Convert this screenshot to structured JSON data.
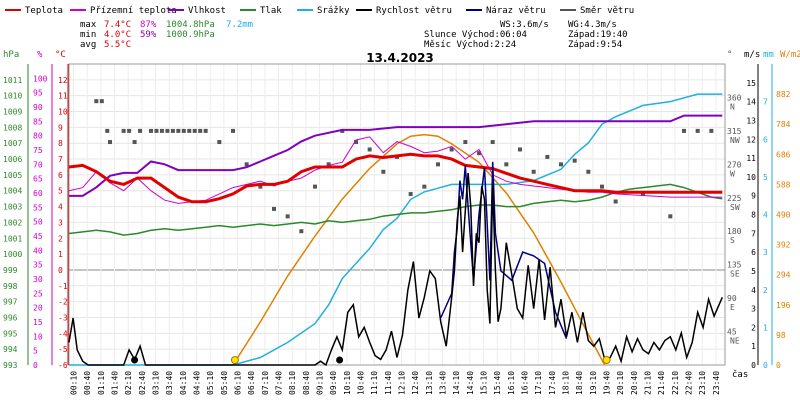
{
  "chart_data": {
    "type": "line",
    "title": "13.4.2023",
    "legend": [
      {
        "name": "Teplota",
        "color": "#e00000"
      },
      {
        "name": "Přízemní teplota",
        "color": "#d000d0"
      },
      {
        "name": "Vlhkost",
        "color": "#8000c0"
      },
      {
        "name": "Tlak",
        "color": "#2a8a2a"
      },
      {
        "name": "Srážky",
        "color": "#20b0e0"
      },
      {
        "name": "Rychlost větru",
        "color": "#000000"
      },
      {
        "name": "Náraz větru",
        "color": "#000080"
      },
      {
        "name": "Směr větru",
        "color": "#555555"
      }
    ],
    "stats": {
      "max_label": "max",
      "max_temp": "7.4°C",
      "max_hum": "87%",
      "max_press": "1004.8hPa",
      "rain": "7.2mm",
      "min_label": "min",
      "min_temp": "4.0°C",
      "min_hum": "59%",
      "min_press": "1000.9hPa",
      "avg_label": "avg",
      "avg_temp": "5.5°C"
    },
    "wind_info": {
      "ws": "WS:3.6m/s",
      "wg": "WG:4.3m/s",
      "sun": "Slunce Východ:06:04",
      "sun_set": "Západ:19:40",
      "moon": "Měsíc  Východ:2:24",
      "moon_set": "Západ:9:54"
    },
    "axes": {
      "hpa": {
        "label": "hPa",
        "min": 993,
        "max": 1012,
        "ticks": [
          "993",
          "994",
          "995",
          "996",
          "997",
          "998",
          "999",
          "1000",
          "1001",
          "1002",
          "1003",
          "1004",
          "1005",
          "1006",
          "1007",
          "1008",
          "1009",
          "1010",
          "1011"
        ]
      },
      "pct": {
        "label": "%",
        "ticks": [
          "0",
          "5",
          "10",
          "15",
          "20",
          "25",
          "30",
          "35",
          "40",
          "45",
          "50",
          "55",
          "60",
          "65",
          "70",
          "75",
          "80",
          "85",
          "90",
          "95",
          "100"
        ]
      },
      "temp": {
        "label": "°C",
        "min": -6,
        "max": 13,
        "ticks": [
          "-6",
          "-5",
          "-4",
          "-3",
          "-2",
          "-1",
          "0",
          "1",
          "2",
          "3",
          "4",
          "5",
          "6",
          "7",
          "8",
          "9",
          "10",
          "11",
          "12"
        ]
      },
      "dir": {
        "label": "°",
        "ticks": [
          {
            "deg": "360",
            "dir": "N"
          },
          {
            "deg": "315",
            "dir": "NW"
          },
          {
            "deg": "270",
            "dir": "W"
          },
          {
            "deg": "225",
            "dir": "SW"
          },
          {
            "deg": "180",
            "dir": "S"
          },
          {
            "deg": "135",
            "dir": "SE"
          },
          {
            "deg": "90",
            "dir": "E"
          },
          {
            "deg": "45",
            "dir": "NE"
          }
        ]
      },
      "ms": {
        "label": "m/s",
        "min": 0,
        "max": 16,
        "ticks": [
          "0",
          "1",
          "2",
          "3",
          "4",
          "5",
          "6",
          "7",
          "8",
          "9",
          "10",
          "11",
          "12",
          "13",
          "14",
          "15"
        ]
      },
      "mm": {
        "label": "mm",
        "min": 0,
        "max": 8,
        "ticks": [
          "0",
          "1",
          "2",
          "3",
          "4",
          "5",
          "6",
          "7"
        ]
      },
      "rad": {
        "label": "W/m2",
        "min": 0,
        "max": 980,
        "ticks": [
          "0",
          "98",
          "196",
          "294",
          "392",
          "490",
          "588",
          "686",
          "784",
          "882"
        ]
      },
      "xlabel": "čas",
      "x_ticks": [
        "00:10",
        "00:40",
        "01:10",
        "01:40",
        "02:10",
        "02:40",
        "03:10",
        "03:40",
        "04:10",
        "04:40",
        "05:10",
        "05:40",
        "06:10",
        "06:40",
        "07:10",
        "07:40",
        "08:10",
        "08:40",
        "09:10",
        "09:40",
        "10:10",
        "10:40",
        "11:10",
        "11:40",
        "12:10",
        "12:40",
        "13:10",
        "13:40",
        "14:10",
        "14:40",
        "15:10",
        "15:40",
        "16:10",
        "16:40",
        "17:10",
        "17:40",
        "18:10",
        "18:40",
        "19:10",
        "19:40",
        "20:10",
        "20:40",
        "21:10",
        "21:40",
        "22:10",
        "22:40",
        "23:10",
        "23:40"
      ]
    },
    "series": {
      "temperature": {
        "x": [
          0,
          0.5,
          1,
          1.5,
          2,
          2.5,
          3,
          3.5,
          4,
          4.5,
          5,
          5.5,
          6,
          6.5,
          7,
          7.5,
          8,
          8.5,
          9,
          9.5,
          10,
          10.5,
          11,
          11.5,
          12,
          12.5,
          13,
          13.5,
          14,
          14.5,
          15,
          15.5,
          16,
          16.5,
          17,
          17.5,
          18,
          18.5,
          19,
          19.5,
          20,
          21,
          22,
          23,
          23.9
        ],
        "y": [
          6.5,
          6.6,
          6.2,
          5.6,
          5.4,
          5.8,
          5.8,
          5.2,
          4.6,
          4.3,
          4.3,
          4.5,
          4.8,
          5.3,
          5.4,
          5.4,
          5.6,
          6.2,
          6.5,
          6.5,
          6.5,
          7.0,
          7.2,
          7.1,
          7.2,
          7.3,
          7.2,
          7.2,
          7.0,
          6.6,
          6.5,
          6.4,
          6.1,
          5.8,
          5.6,
          5.4,
          5.2,
          5.0,
          5.0,
          5.0,
          4.9,
          4.9,
          4.9,
          4.9,
          4.9
        ]
      },
      "ground_temperature": {
        "x": [
          0,
          0.5,
          1,
          1.5,
          2,
          2.5,
          3,
          3.5,
          4,
          4.5,
          5,
          5.5,
          6,
          6.5,
          7,
          7.5,
          8,
          8.5,
          9,
          9.5,
          10,
          10.5,
          11,
          11.5,
          12,
          12.5,
          13,
          13.5,
          14,
          14.5,
          15,
          15.5,
          16,
          16.5,
          17,
          17.5,
          18,
          18.5,
          19,
          19.5,
          20,
          21,
          22,
          23,
          23.9
        ],
        "y": [
          5.0,
          5.2,
          6.2,
          5.5,
          5.0,
          5.8,
          5.0,
          4.4,
          4.2,
          4.3,
          4.4,
          4.8,
          5.2,
          5.4,
          5.6,
          5.3,
          5.6,
          5.8,
          6.3,
          6.6,
          6.8,
          8.2,
          8.4,
          7.4,
          8.1,
          7.8,
          7.4,
          7.5,
          7.8,
          7.0,
          7.6,
          6.0,
          5.6,
          5.4,
          5.3,
          5.2,
          5.1,
          5.0,
          4.9,
          4.9,
          4.8,
          4.7,
          4.6,
          4.6,
          4.6
        ]
      },
      "humidity": {
        "x": [
          0,
          0.5,
          1,
          1.5,
          2,
          2.5,
          3,
          3.5,
          4,
          4.5,
          5,
          5.5,
          6,
          6.5,
          7,
          7.5,
          8,
          8.5,
          9,
          10,
          11,
          12,
          13,
          14,
          15,
          16,
          17,
          18,
          19,
          20,
          21,
          22,
          22.5,
          23,
          23.9
        ],
        "y": [
          59,
          59,
          62,
          66,
          67,
          67,
          71,
          70,
          68,
          68,
          68,
          68,
          68,
          69,
          71,
          73,
          75,
          78,
          80,
          82,
          82,
          83,
          83,
          83,
          83,
          84,
          85,
          85,
          85,
          85,
          85,
          85,
          87,
          87,
          87
        ]
      },
      "pressure": {
        "x": [
          0,
          0.5,
          1,
          1.5,
          2,
          2.5,
          3,
          3.5,
          4,
          4.5,
          5,
          5.5,
          6,
          6.5,
          7,
          7.5,
          8,
          8.5,
          9,
          9.5,
          10,
          10.5,
          11,
          11.5,
          12,
          12.5,
          13,
          13.5,
          14,
          14.5,
          15,
          15.5,
          16,
          16.5,
          17,
          17.5,
          18,
          18.5,
          19,
          19.5,
          20,
          20.5,
          21,
          21.5,
          22,
          22.5,
          23,
          23.5,
          23.9
        ],
        "y": [
          1001.3,
          1001.4,
          1001.5,
          1001.4,
          1001.2,
          1001.3,
          1001.5,
          1001.6,
          1001.5,
          1001.6,
          1001.7,
          1001.8,
          1001.7,
          1001.8,
          1001.9,
          1001.8,
          1001.9,
          1002.0,
          1001.9,
          1002.1,
          1002.0,
          1002.1,
          1002.2,
          1002.4,
          1002.5,
          1002.6,
          1002.6,
          1002.7,
          1002.8,
          1003.0,
          1003.1,
          1003.1,
          1003.0,
          1003.0,
          1003.2,
          1003.3,
          1003.4,
          1003.3,
          1003.4,
          1003.6,
          1003.9,
          1004.1,
          1004.2,
          1004.3,
          1004.4,
          1004.2,
          1003.9,
          1003.6,
          1003.5
        ]
      },
      "rain_cumulative": {
        "x": [
          0,
          6.0,
          7.0,
          8.0,
          9.0,
          9.5,
          10.0,
          10.5,
          11.0,
          11.5,
          12.0,
          12.5,
          13.0,
          13.5,
          14.0,
          14.5,
          15.0,
          16.0,
          17.0,
          18.0,
          18.5,
          19.0,
          19.5,
          20.0,
          21.0,
          22.0,
          23.0,
          23.9
        ],
        "y": [
          0,
          0,
          0.2,
          0.6,
          1.1,
          1.6,
          2.3,
          2.7,
          3.1,
          3.6,
          3.9,
          4.4,
          4.6,
          4.7,
          4.8,
          4.8,
          4.8,
          4.8,
          4.9,
          5.2,
          5.6,
          5.9,
          6.4,
          6.6,
          6.9,
          7.0,
          7.2,
          7.2
        ]
      },
      "wind_speed": {
        "x": [
          0,
          0.15,
          0.3,
          0.5,
          0.7,
          1,
          1.5,
          2,
          2.2,
          2.4,
          2.6,
          2.8,
          3,
          3.5,
          4,
          5,
          6,
          7,
          8,
          9,
          9.2,
          9.4,
          9.6,
          9.8,
          10,
          10.2,
          10.4,
          10.6,
          10.8,
          11,
          11.2,
          11.4,
          11.6,
          11.8,
          12,
          12.2,
          12.4,
          12.6,
          12.8,
          13,
          13.2,
          13.4,
          13.6,
          13.8,
          14,
          14.1,
          14.2,
          14.3,
          14.4,
          14.5,
          14.6,
          14.7,
          14.8,
          14.9,
          15,
          15.1,
          15.2,
          15.3,
          15.4,
          15.5,
          15.6,
          15.7,
          15.8,
          16,
          16.2,
          16.4,
          16.6,
          16.8,
          17,
          17.2,
          17.4,
          17.6,
          17.8,
          18,
          18.2,
          18.4,
          18.6,
          18.8,
          19,
          19.2,
          19.4,
          19.6,
          19.8,
          20,
          20.2,
          20.4,
          20.6,
          20.8,
          21,
          21.2,
          21.4,
          21.6,
          21.8,
          22,
          22.2,
          22.4,
          22.6,
          22.8,
          23,
          23.2,
          23.4,
          23.6,
          23.9
        ],
        "y": [
          1.2,
          2.5,
          0.8,
          0.2,
          0,
          0,
          0,
          0,
          0.8,
          0.3,
          1.0,
          0,
          0,
          0,
          0,
          0,
          0,
          0,
          0,
          0,
          0.2,
          0,
          0.8,
          1.5,
          0.8,
          2.8,
          3.2,
          1.5,
          2.0,
          1.2,
          0.5,
          0.3,
          0.8,
          1.8,
          0.4,
          1.6,
          4.0,
          5.5,
          2.5,
          3.6,
          5.0,
          4.6,
          2.3,
          1.0,
          3.6,
          5.0,
          7.6,
          9.0,
          6.0,
          8.2,
          10.2,
          8.4,
          4.2,
          7.0,
          6.5,
          9.5,
          8.8,
          4.0,
          2.2,
          9.6,
          5.0,
          2.3,
          3.0,
          6.5,
          4.8,
          3.0,
          2.5,
          5.3,
          3.0,
          5.6,
          2.4,
          5.2,
          2.0,
          3.5,
          1.5,
          2.8,
          1.2,
          2.8,
          1.3,
          1.0,
          1.4,
          0.3,
          0.4,
          1.0,
          0.2,
          1.5,
          0.7,
          1.4,
          0.8,
          0.6,
          1.2,
          0.8,
          1.3,
          1.5,
          0.8,
          1.7,
          0.4,
          1.2,
          2.8,
          2.0,
          3.5,
          2.6,
          3.6
        ]
      },
      "wind_gust": {
        "x": [
          13.6,
          14.0,
          14.1,
          14.2,
          14.3,
          14.4,
          14.5,
          14.6,
          14.8,
          15.0,
          15.2,
          15.4,
          15.5,
          15.6,
          15.8,
          16.2,
          16.6,
          17.0,
          17.4,
          17.8,
          18.2
        ],
        "y": [
          2.5,
          3.8,
          6.0,
          7.2,
          9.8,
          8.8,
          10.6,
          8.4,
          4.5,
          8.0,
          10.5,
          4.5,
          10.8,
          7.0,
          5.0,
          4.5,
          6.0,
          5.8,
          5.4,
          2.8,
          1.4
        ]
      },
      "solar_radiation": {
        "x": [
          6.0,
          7.0,
          8.0,
          9.0,
          10.0,
          11.0,
          12.0,
          12.5,
          13.0,
          13.5,
          14.0,
          15.0,
          16.0,
          17.0,
          18.0,
          19.0,
          19.6
        ],
        "y": [
          0,
          140,
          290,
          420,
          540,
          640,
          720,
          745,
          750,
          745,
          720,
          660,
          560,
          430,
          270,
          100,
          0
        ]
      },
      "wind_direction": {
        "x": [
          1,
          1.2,
          1.4,
          1.5,
          2,
          2.2,
          2.4,
          2.6,
          3,
          3.2,
          3.4,
          3.6,
          3.8,
          4,
          4.2,
          4.4,
          4.6,
          4.8,
          5,
          5.5,
          6,
          6.5,
          7,
          7.5,
          8,
          8.5,
          9,
          9.5,
          10,
          10.5,
          11,
          11.5,
          12,
          12.5,
          13,
          13.5,
          14,
          14.5,
          15,
          15.5,
          16,
          16.5,
          17,
          17.5,
          18,
          18.5,
          19,
          19.5,
          20,
          21,
          22,
          22.5,
          23,
          23.5
        ],
        "y": [
          355,
          355,
          315,
          300,
          315,
          315,
          300,
          315,
          315,
          315,
          315,
          315,
          315,
          315,
          315,
          315,
          315,
          315,
          315,
          300,
          315,
          270,
          240,
          210,
          200,
          180,
          240,
          270,
          315,
          300,
          290,
          260,
          280,
          230,
          240,
          270,
          290,
          300,
          285,
          300,
          270,
          290,
          260,
          280,
          270,
          275,
          260,
          240,
          220,
          230,
          200,
          315,
          315,
          315
        ]
      },
      "sun_markers": [
        {
          "x": 6.07
        },
        {
          "x": 19.67
        }
      ],
      "moon_markers": [
        {
          "x": 2.4
        },
        {
          "x": 9.9
        }
      ]
    },
    "grid": true,
    "legend_placement": "top"
  }
}
